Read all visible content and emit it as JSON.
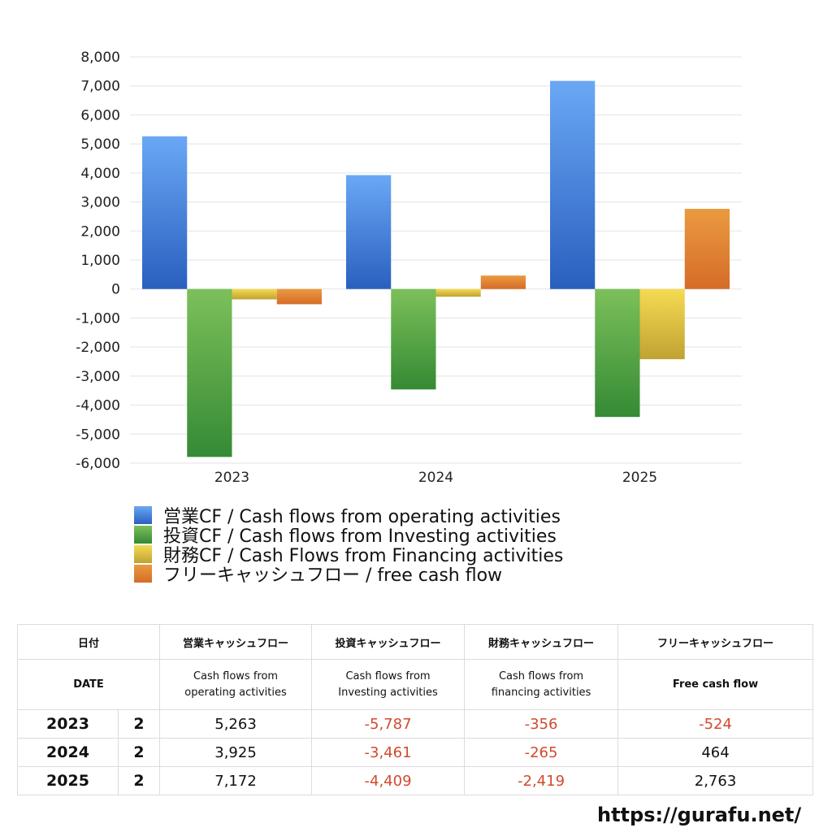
{
  "chart_data": {
    "type": "bar",
    "categories": [
      "2023",
      "2024",
      "2025"
    ],
    "series": [
      {
        "name": "営業CF / Cash flows from operating activities",
        "values": [
          5263,
          3925,
          7172
        ],
        "color_top": "#6aa8f5",
        "color_bottom": "#2a5fbf"
      },
      {
        "name": "投資CF / Cash flows from Investing activities",
        "values": [
          -5787,
          -3461,
          -4409
        ],
        "color_top": "#7cc05a",
        "color_bottom": "#358a34"
      },
      {
        "name": "財務CF / Cash Flows from Financing activities",
        "values": [
          -356,
          -265,
          -2419
        ],
        "color_top": "#f5db52",
        "color_bottom": "#c0a233"
      },
      {
        "name": "フリーキャッシュフロー / free cash flow",
        "values": [
          -524,
          464,
          2763
        ],
        "color_top": "#eb9a40",
        "color_bottom": "#d56c28"
      }
    ],
    "ylim": [
      -6000,
      8000
    ],
    "ytick_step": 1000,
    "ytick_labels": [
      "8,000",
      "7,000",
      "6,000",
      "5,000",
      "4,000",
      "3,000",
      "2,000",
      "1,000",
      "0",
      "-1,000",
      "-2,000",
      "-3,000",
      "-4,000",
      "-5,000",
      "-6,000"
    ],
    "grid": true,
    "legend_position": "bottom-left"
  },
  "table": {
    "header_jp": {
      "date": "日付",
      "operating": "営業キャッシュフロー",
      "investing": "投資キャッシュフロー",
      "financing": "財務キャッシュフロー",
      "fcf": "フリーキャッシュフロー"
    },
    "header_en": {
      "date": "DATE",
      "operating": [
        "Cash flows from",
        "operating activities"
      ],
      "investing": [
        "Cash flows from",
        "Investing activities"
      ],
      "financing": [
        "Cash flows from",
        "financing activities"
      ],
      "fcf": "Free cash flow"
    },
    "rows": [
      {
        "year": "2023",
        "month": "2",
        "operating": "5,263",
        "investing": "-5,787",
        "financing": "-356",
        "fcf": "-524"
      },
      {
        "year": "2024",
        "month": "2",
        "operating": "3,925",
        "investing": "-3,461",
        "financing": "-265",
        "fcf": "464"
      },
      {
        "year": "2025",
        "month": "2",
        "operating": "7,172",
        "investing": "-4,409",
        "financing": "-2,419",
        "fcf": "2,763"
      }
    ]
  },
  "footer": {
    "url": "https://gurafu.net/"
  }
}
